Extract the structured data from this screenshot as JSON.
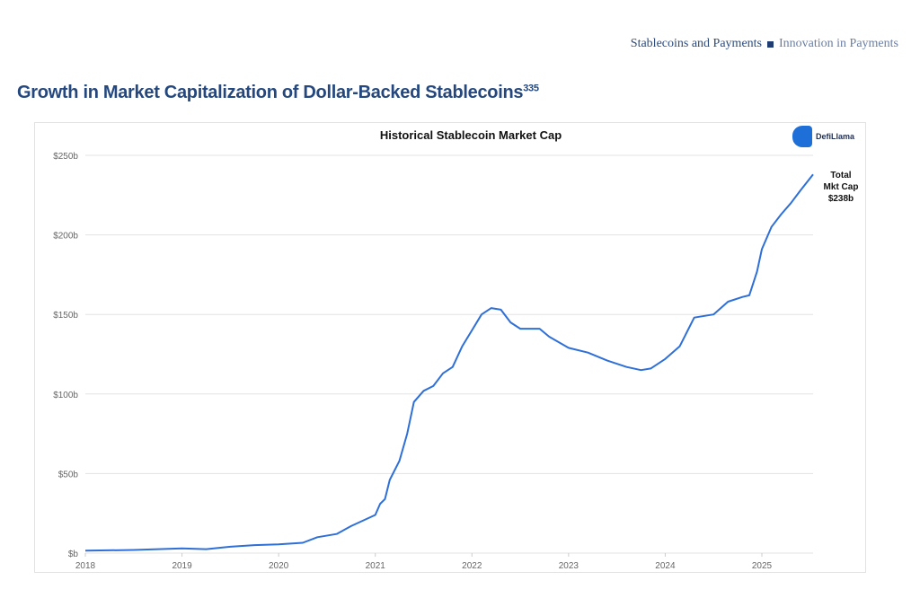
{
  "header": {
    "section": "Stablecoins and Payments",
    "subsection": "Innovation in Payments"
  },
  "page_title": "Growth in Market Capitalization of Dollar-Backed Stablecoins",
  "footnote": "335",
  "logo_text": "DefiLlama",
  "chart_data": {
    "type": "line",
    "title": "Historical Stablecoin Market Cap",
    "xlabel": "",
    "ylabel": "",
    "xlim": [
      2018,
      2025.53
    ],
    "ylim": [
      0,
      250
    ],
    "grid": true,
    "line_color": "#2e6fd8",
    "x_ticks": [
      "2018",
      "2019",
      "2020",
      "2021",
      "2022",
      "2023",
      "2024",
      "2025"
    ],
    "y_ticks": [
      "$b",
      "$50b",
      "$100b",
      "$150b",
      "$200b",
      "$250b"
    ],
    "annotation": [
      "Total",
      "Mkt Cap",
      "$238b"
    ],
    "series": [
      {
        "x": [
          2018.0,
          2018.5,
          2019.0,
          2019.25,
          2019.5,
          2019.75,
          2020.0,
          2020.25,
          2020.4,
          2020.6,
          2020.75,
          2021.0,
          2021.05,
          2021.1,
          2021.15,
          2021.25,
          2021.33,
          2021.4,
          2021.5,
          2021.6,
          2021.7,
          2021.8,
          2021.9,
          2022.0,
          2022.1,
          2022.2,
          2022.3,
          2022.4,
          2022.5,
          2022.7,
          2022.8,
          2023.0,
          2023.2,
          2023.4,
          2023.6,
          2023.75,
          2023.85,
          2024.0,
          2024.15,
          2024.3,
          2024.5,
          2024.65,
          2024.8,
          2024.87,
          2024.95,
          2025.0,
          2025.1,
          2025.2,
          2025.3,
          2025.4,
          2025.53
        ],
        "y": [
          1.5,
          2,
          3,
          2.5,
          4,
          5,
          5.5,
          6.5,
          10,
          12,
          17,
          24,
          31,
          34,
          46,
          58,
          75,
          95,
          102,
          105,
          113,
          117,
          130,
          140,
          150,
          154,
          153,
          145,
          141,
          141,
          136,
          129,
          126,
          121,
          117,
          115,
          116,
          122,
          130,
          148,
          150,
          158,
          161,
          162,
          177,
          191,
          205,
          213,
          220,
          228,
          238
        ]
      }
    ]
  }
}
